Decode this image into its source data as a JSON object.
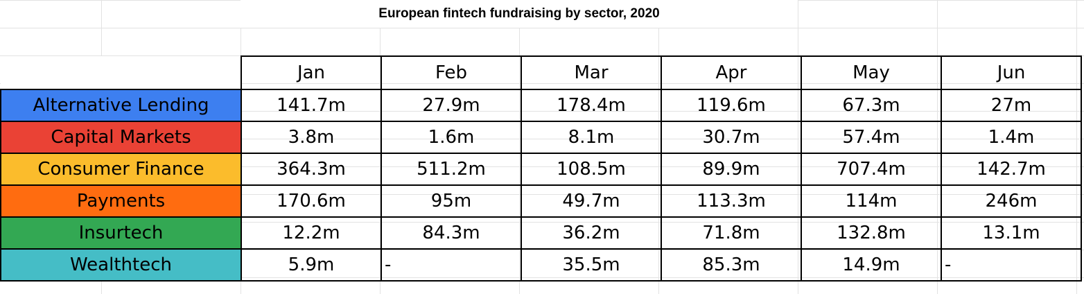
{
  "sheet": {
    "title": "European fintech fundraising by sector, 2020",
    "months": [
      "Jan",
      "Feb",
      "Mar",
      "Apr",
      "May",
      "Jun"
    ],
    "rows": [
      {
        "sector": "Alternative Lending",
        "color": "#3d7ff0",
        "values": [
          "141.7m",
          "27.9m",
          "178.4m",
          "119.6m",
          "67.3m",
          "27m"
        ]
      },
      {
        "sector": "Capital Markets",
        "color": "#ea4235",
        "values": [
          "3.8m",
          "1.6m",
          "8.1m",
          "30.7m",
          "57.4m",
          "1.4m"
        ]
      },
      {
        "sector": "Consumer Finance",
        "color": "#fbbc2c",
        "values": [
          "364.3m",
          "511.2m",
          "108.5m",
          "89.9m",
          "707.4m",
          "142.7m"
        ]
      },
      {
        "sector": "Payments",
        "color": "#ff6c10",
        "values": [
          "170.6m",
          "95m",
          "49.7m",
          "113.3m",
          "114m",
          "246m"
        ]
      },
      {
        "sector": "Insurtech",
        "color": "#33a853",
        "values": [
          "12.2m",
          "84.3m",
          "36.2m",
          "71.8m",
          "132.8m",
          "13.1m"
        ]
      },
      {
        "sector": "Wealthtech",
        "color": "#45bdc6",
        "values": [
          "5.9m",
          "-",
          "35.5m",
          "85.3m",
          "14.9m",
          "-"
        ]
      }
    ]
  }
}
